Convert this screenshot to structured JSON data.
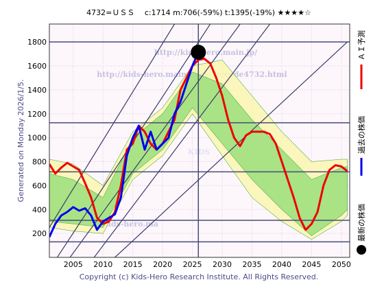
{
  "chart_data": {
    "type": "line",
    "title": "4732=ＵＳＳ　 c:1714  m:706(-59%)  t:1395(-19%)  ★★★★☆",
    "side_label": "Generated on Monday 2026/1/5.",
    "footer": "Copyright (c) Kids-Hero Research Institute. All Rights Reserved.",
    "watermarks": [
      "http://kids-hero.main.jp/",
      "http://kids-hero.main.jp/cycle/code4732.html",
      "KIDS",
      "@kids-hero.ma"
    ],
    "xlim": [
      2001,
      2051.4
    ],
    "ylim": [
      0,
      1950
    ],
    "xticks": [
      2005,
      2010,
      2015,
      2020,
      2025,
      2030,
      2035,
      2040,
      2045,
      2050
    ],
    "yticks": [
      200,
      400,
      600,
      800,
      1000,
      1200,
      1400,
      1600,
      1800
    ],
    "grid": true,
    "bands": [
      {
        "color": "#fbf6b0",
        "x": [
          2001,
          2005,
          2010,
          2015,
          2020,
          2025,
          2030,
          2035,
          2040,
          2045,
          2050,
          2051
        ],
        "upper": [
          820,
          780,
          600,
          1050,
          1250,
          1600,
          1650,
          1350,
          1050,
          800,
          820,
          820
        ],
        "lower": [
          250,
          220,
          200,
          650,
          850,
          1200,
          850,
          500,
          300,
          150,
          300,
          350
        ]
      },
      {
        "color": "#9be07c",
        "x": [
          2001,
          2005,
          2010,
          2015,
          2020,
          2025,
          2030,
          2035,
          2040,
          2045,
          2050,
          2051
        ],
        "upper": [
          700,
          650,
          500,
          1000,
          1200,
          1550,
          1450,
          1150,
          900,
          650,
          750,
          760
        ],
        "lower": [
          300,
          280,
          250,
          700,
          900,
          1250,
          950,
          650,
          400,
          180,
          350,
          400
        ]
      }
    ],
    "hlines": [
      1800,
      1125,
      715,
      310,
      130
    ],
    "vlines": [
      2026
    ],
    "channel_lines": [
      [
        2001,
        250,
        2022,
        1950
      ],
      [
        2001,
        -100,
        2028,
        1950
      ],
      [
        2003,
        -100,
        2033,
        1950
      ],
      [
        2007,
        -100,
        2038,
        1950
      ],
      [
        2012,
        0,
        2051,
        1800
      ]
    ],
    "series": [
      {
        "name": "ＡＩ予測",
        "color": "#ee0000",
        "x": [
          2001,
          2002,
          2003,
          2004,
          2005,
          2006,
          2007,
          2008,
          2009,
          2010,
          2011,
          2012,
          2013,
          2014,
          2015,
          2016,
          2017,
          2018,
          2019,
          2020,
          2021,
          2022,
          2023,
          2024,
          2025,
          2026,
          2027,
          2028,
          2029,
          2030,
          2031,
          2032,
          2033,
          2034,
          2035,
          2036,
          2037,
          2038,
          2039,
          2040,
          2041,
          2042,
          2043,
          2044,
          2045,
          2046,
          2047,
          2048,
          2049,
          2050,
          2051
        ],
        "values": [
          780,
          700,
          750,
          790,
          760,
          730,
          620,
          500,
          330,
          280,
          300,
          380,
          600,
          900,
          950,
          1100,
          1050,
          950,
          900,
          950,
          1050,
          1150,
          1400,
          1500,
          1600,
          1650,
          1660,
          1620,
          1500,
          1350,
          1150,
          1000,
          930,
          1020,
          1050,
          1050,
          1050,
          1030,
          950,
          800,
          650,
          500,
          330,
          230,
          280,
          380,
          600,
          730,
          770,
          760,
          720
        ]
      },
      {
        "name": "過去の株価",
        "color": "#0000ee",
        "x": [
          2001,
          2002,
          2003,
          2004,
          2005,
          2006,
          2007,
          2008,
          2009,
          2010,
          2011,
          2012,
          2013,
          2014,
          2015,
          2016,
          2017,
          2018,
          2019,
          2020,
          2021,
          2022,
          2023,
          2024,
          2025,
          2026
        ],
        "values": [
          170,
          280,
          350,
          380,
          420,
          390,
          410,
          350,
          230,
          300,
          330,
          360,
          500,
          850,
          1000,
          1100,
          900,
          1050,
          900,
          950,
          1000,
          1200,
          1300,
          1450,
          1600,
          1714
        ]
      }
    ],
    "latest": {
      "name": "最新の株価",
      "x": 2026,
      "value": 1714,
      "color": "#000000"
    }
  }
}
